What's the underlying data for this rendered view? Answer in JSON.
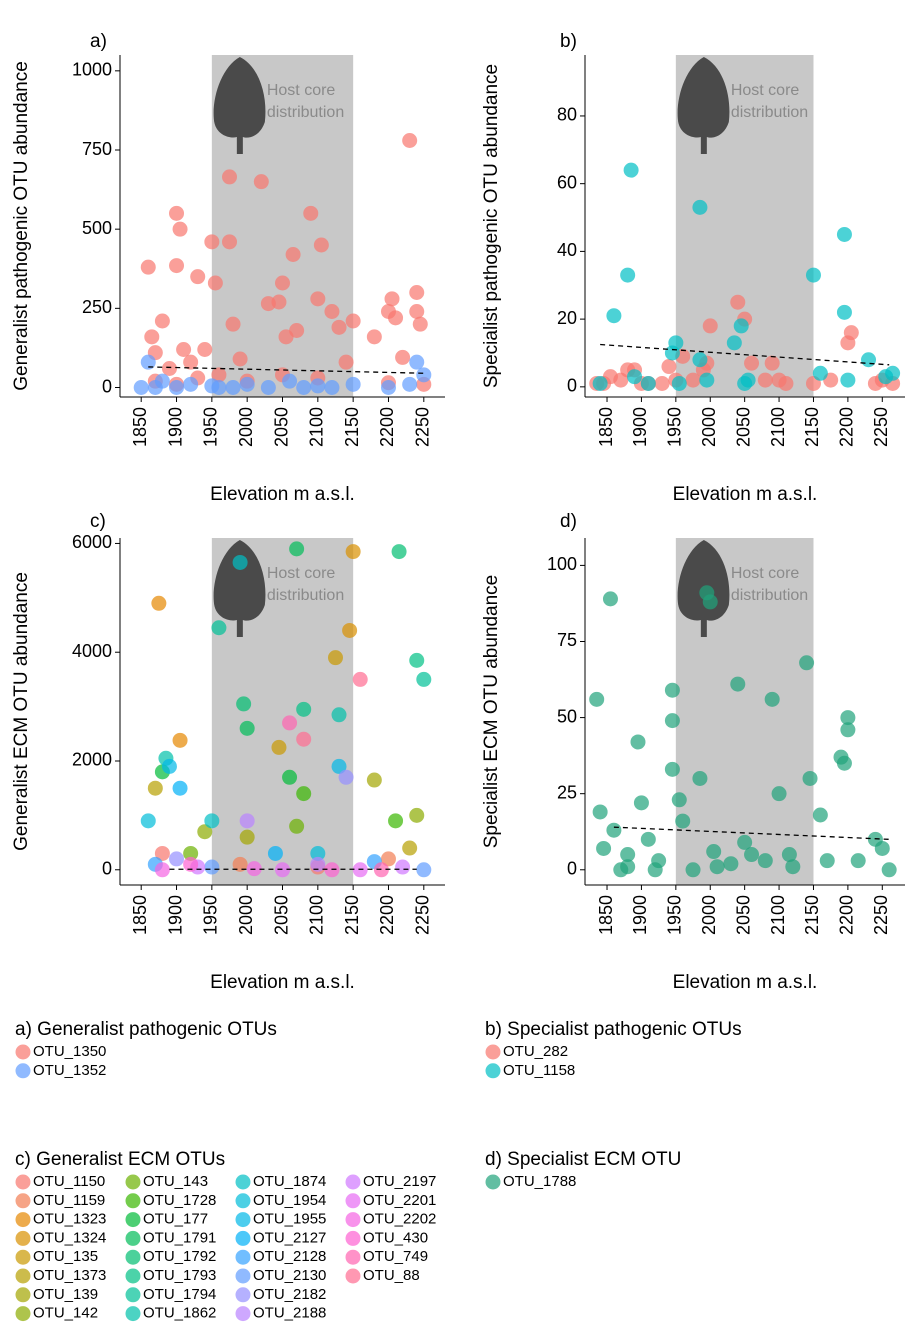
{
  "chart_data": [
    {
      "type": "scatter",
      "label": "a)",
      "ylabel": "Generalist pathogenic OTU abundance",
      "xlabel": "Elevation m a.s.l.",
      "xlim": [
        1820,
        2280
      ],
      "ylim": [
        -30,
        1050
      ],
      "xticks": [
        1850,
        1900,
        1950,
        2000,
        2050,
        2100,
        2150,
        2200,
        2250
      ],
      "yticks": [
        0,
        250,
        500,
        750,
        1000
      ],
      "band": [
        1950,
        2150
      ],
      "annotation": [
        "Host core",
        "distribution"
      ],
      "legend_title": "a) Generalist pathogenic OTUs",
      "trend": {
        "x": [
          1860,
          2250
        ],
        "y": [
          65,
          45
        ]
      },
      "series": [
        {
          "name": "OTU_1350",
          "color": "#f8766d",
          "x": [
            1860,
            1865,
            1870,
            1880,
            1890,
            1900,
            1905,
            1900,
            1910,
            1920,
            1930,
            1940,
            1950,
            1955,
            1975,
            1975,
            1980,
            1990,
            2020,
            2030,
            2045,
            2050,
            2055,
            2065,
            2070,
            2090,
            2100,
            2105,
            2120,
            2130,
            2140,
            2150,
            2180,
            2200,
            2205,
            2210,
            2220,
            2230,
            2240,
            2240,
            2245,
            1870,
            1900,
            1930,
            1960,
            2000,
            2050,
            2100,
            2200,
            2250
          ],
          "values": [
            380,
            160,
            110,
            210,
            60,
            550,
            500,
            385,
            120,
            80,
            350,
            120,
            460,
            330,
            665,
            460,
            200,
            90,
            650,
            265,
            270,
            330,
            160,
            420,
            180,
            550,
            280,
            450,
            240,
            190,
            80,
            210,
            160,
            240,
            280,
            220,
            95,
            780,
            300,
            240,
            200,
            20,
            10,
            30,
            40,
            20,
            40,
            30,
            15,
            10
          ]
        },
        {
          "name": "OTU_1352",
          "color": "#619cff",
          "x": [
            1850,
            1860,
            1880,
            1900,
            1920,
            1950,
            1980,
            2000,
            2030,
            2060,
            2100,
            2120,
            2150,
            2200,
            2240,
            2250,
            2230,
            2080,
            1960,
            1870
          ],
          "values": [
            0,
            80,
            20,
            0,
            10,
            5,
            0,
            10,
            0,
            20,
            5,
            0,
            10,
            0,
            80,
            40,
            10,
            0,
            0,
            0
          ]
        }
      ]
    },
    {
      "type": "scatter",
      "label": "b)",
      "ylabel": "Specialist pathogenic OTU abundance",
      "xlabel": "Elevation m a.s.l.",
      "xlim": [
        1818,
        2283
      ],
      "ylim": [
        -3,
        98
      ],
      "xticks": [
        1850,
        1900,
        1950,
        2000,
        2050,
        2100,
        2150,
        2200,
        2250
      ],
      "yticks": [
        0,
        20,
        40,
        60,
        80
      ],
      "band": [
        1950,
        2150
      ],
      "annotation": [
        "Host core",
        "distribution"
      ],
      "legend_title": "b) Specialist pathogenic OTUs",
      "trend": {
        "x": [
          1840,
          2260
        ],
        "y": [
          12.5,
          6.5
        ]
      },
      "series": [
        {
          "name": "OTU_282",
          "color": "#f8766d",
          "x": [
            1835,
            1845,
            1855,
            1870,
            1880,
            1890,
            1900,
            1910,
            1930,
            1940,
            1950,
            1960,
            1975,
            1990,
            1995,
            2000,
            2040,
            2050,
            2060,
            2080,
            2090,
            2100,
            2110,
            2150,
            2175,
            2200,
            2205,
            2240,
            2250,
            2265
          ],
          "values": [
            1,
            1,
            3,
            2,
            5,
            5,
            1,
            1,
            1,
            6,
            2,
            9,
            2,
            5,
            7,
            18,
            25,
            20,
            7,
            2,
            7,
            2,
            1,
            1,
            2,
            13,
            16,
            1,
            2,
            1
          ]
        },
        {
          "name": "OTU_1158",
          "color": "#00bfc4",
          "x": [
            1840,
            1860,
            1880,
            1885,
            1890,
            1910,
            1945,
            1950,
            1955,
            1985,
            1985,
            1995,
            2035,
            2045,
            2050,
            2055,
            2150,
            2160,
            2195,
            2195,
            2200,
            2230,
            2255,
            2265
          ],
          "values": [
            1,
            21,
            33,
            64,
            3,
            1,
            10,
            13,
            1,
            8,
            53,
            2,
            13,
            18,
            1,
            2,
            33,
            4,
            22,
            45,
            2,
            8,
            3,
            4
          ]
        }
      ]
    },
    {
      "type": "scatter",
      "label": "c)",
      "ylabel": "Generalist ECM OTU abundance",
      "xlabel": "Elevation m a.s.l.",
      "xlim": [
        1820,
        2280
      ],
      "ylim": [
        -280,
        6100
      ],
      "xticks": [
        1850,
        1900,
        1950,
        2000,
        2050,
        2100,
        2150,
        2200,
        2250
      ],
      "yticks": [
        0,
        2000,
        4000,
        6000
      ],
      "band": [
        1950,
        2150
      ],
      "annotation": [
        "Host core",
        "distribution"
      ],
      "legend_title": "c) Generalist ECM OTUs",
      "trend": {
        "x": [
          1890,
          2240
        ],
        "y": [
          10,
          10
        ]
      },
      "series": [
        {
          "name": "OTU_1150",
          "color": "#f8766d",
          "x": [
            1880,
            2100
          ],
          "values": [
            300,
            50
          ]
        },
        {
          "name": "OTU_1159",
          "color": "#f27d52",
          "x": [
            1990,
            2200
          ],
          "values": [
            100,
            200
          ]
        },
        {
          "name": "OTU_1323",
          "color": "#e58700",
          "x": [
            1875,
            1905
          ],
          "values": [
            4900,
            2380
          ]
        },
        {
          "name": "OTU_1324",
          "color": "#d89000",
          "x": [
            2150,
            2145
          ],
          "values": [
            5850,
            4400
          ]
        },
        {
          "name": "OTU_135",
          "color": "#c99800",
          "x": [
            2125,
            2045
          ],
          "values": [
            3900,
            2250
          ]
        },
        {
          "name": "OTU_1373",
          "color": "#b79f00",
          "x": [
            1870,
            2230
          ],
          "values": [
            1500,
            400
          ]
        },
        {
          "name": "OTU_139",
          "color": "#a3a500",
          "x": [
            2180,
            2000
          ],
          "values": [
            1650,
            600
          ]
        },
        {
          "name": "OTU_142",
          "color": "#8cab00",
          "x": [
            1940,
            2240
          ],
          "values": [
            700,
            1000
          ]
        },
        {
          "name": "OTU_143",
          "color": "#6bb100",
          "x": [
            2070,
            1920
          ],
          "values": [
            800,
            300
          ]
        },
        {
          "name": "OTU_1728",
          "color": "#39b600",
          "x": [
            2080,
            2210
          ],
          "values": [
            1400,
            900
          ]
        },
        {
          "name": "OTU_177",
          "color": "#00ba38",
          "x": [
            1880,
            2060
          ],
          "values": [
            1800,
            1700
          ]
        },
        {
          "name": "OTU_1791",
          "color": "#00bc59",
          "x": [
            2070,
            2000
          ],
          "values": [
            5900,
            2600
          ]
        },
        {
          "name": "OTU_1792",
          "color": "#00be70",
          "x": [
            2215,
            1995
          ],
          "values": [
            5850,
            3050
          ]
        },
        {
          "name": "OTU_1793",
          "color": "#00c085",
          "x": [
            2240,
            2080
          ],
          "values": [
            3850,
            2950
          ]
        },
        {
          "name": "OTU_1794",
          "color": "#00c097",
          "x": [
            2250,
            1960
          ],
          "values": [
            3500,
            4450
          ]
        },
        {
          "name": "OTU_1862",
          "color": "#00c1aa",
          "x": [
            1885,
            2130
          ],
          "values": [
            2050,
            2850
          ]
        },
        {
          "name": "OTU_1874",
          "color": "#00bfc4",
          "x": [
            1990,
            1950
          ],
          "values": [
            5650,
            900
          ]
        },
        {
          "name": "OTU_1954",
          "color": "#00bcd8",
          "x": [
            1860,
            2100
          ],
          "values": [
            900,
            300
          ]
        },
        {
          "name": "OTU_1955",
          "color": "#00b8e7",
          "x": [
            1890,
            2130
          ],
          "values": [
            1900,
            1900
          ]
        },
        {
          "name": "OTU_2127",
          "color": "#00b0f6",
          "x": [
            1905,
            2040
          ],
          "values": [
            1500,
            300
          ]
        },
        {
          "name": "OTU_2128",
          "color": "#35a2ff",
          "x": [
            1870,
            2180
          ],
          "values": [
            100,
            150
          ]
        },
        {
          "name": "OTU_2130",
          "color": "#619cff",
          "x": [
            1950,
            2250
          ],
          "values": [
            50,
            0
          ]
        },
        {
          "name": "OTU_2182",
          "color": "#9590ff",
          "x": [
            2140,
            1900
          ],
          "values": [
            1700,
            200
          ]
        },
        {
          "name": "OTU_2188",
          "color": "#b983ff",
          "x": [
            2000,
            2100
          ],
          "values": [
            900,
            100
          ]
        },
        {
          "name": "OTU_2197",
          "color": "#d077ff",
          "x": [
            1930,
            2220
          ],
          "values": [
            50,
            50
          ]
        },
        {
          "name": "OTU_2201",
          "color": "#e76bf3",
          "x": [
            2050,
            2160
          ],
          "values": [
            0,
            0
          ]
        },
        {
          "name": "OTU_2202",
          "color": "#f564e3",
          "x": [
            1880,
            2010
          ],
          "values": [
            0,
            20
          ]
        },
        {
          "name": "OTU_430",
          "color": "#fd61d1",
          "x": [
            1920,
            2120
          ],
          "values": [
            100,
            0
          ]
        },
        {
          "name": "OTU_749",
          "color": "#ff64b0",
          "x": [
            2060,
            2190
          ],
          "values": [
            2700,
            0
          ]
        },
        {
          "name": "OTU_88",
          "color": "#ff6c91",
          "x": [
            2160,
            2080
          ],
          "values": [
            3500,
            2400
          ]
        }
      ]
    },
    {
      "type": "scatter",
      "label": "d)",
      "ylabel": "Specialist ECM OTU abundance",
      "xlabel": "Elevation m a.s.l.",
      "xlim": [
        1818,
        2283
      ],
      "ylim": [
        -5,
        109
      ],
      "xticks": [
        1850,
        1900,
        1950,
        2000,
        2050,
        2100,
        2150,
        2200,
        2250
      ],
      "yticks": [
        0,
        25,
        50,
        75,
        100
      ],
      "band": [
        1950,
        2150
      ],
      "annotation": [
        "Host core",
        "distribution"
      ],
      "legend_title": "d) Specialist ECM OTU",
      "trend": {
        "x": [
          1860,
          2260
        ],
        "y": [
          14,
          10
        ]
      },
      "series": [
        {
          "name": "OTU_1788",
          "color": "#1fa37b",
          "x": [
            1835,
            1840,
            1845,
            1855,
            1860,
            1870,
            1880,
            1895,
            1900,
            1910,
            1925,
            1945,
            1945,
            1945,
            1955,
            1960,
            1975,
            1985,
            1995,
            2000,
            2005,
            2030,
            2040,
            2050,
            2060,
            2080,
            2090,
            2100,
            2115,
            2140,
            2145,
            2160,
            2170,
            2190,
            2195,
            2200,
            2200,
            2215,
            2240,
            2250,
            2260,
            1880,
            1920,
            2010,
            2120
          ],
          "values": [
            56,
            19,
            7,
            89,
            13,
            0,
            5,
            42,
            22,
            10,
            3,
            59,
            49,
            33,
            23,
            16,
            0,
            30,
            91,
            88,
            6,
            2,
            61,
            9,
            5,
            3,
            56,
            25,
            5,
            68,
            30,
            18,
            3,
            37,
            35,
            50,
            46,
            3,
            10,
            7,
            0,
            1,
            0,
            1,
            1
          ]
        }
      ]
    }
  ]
}
